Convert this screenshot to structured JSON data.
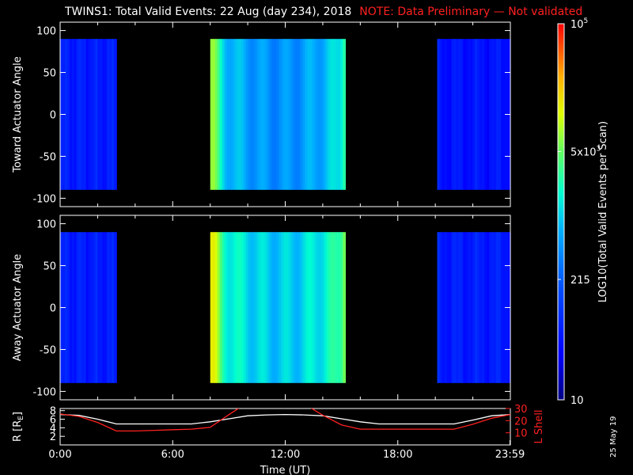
{
  "header": {
    "title": "TWINS1: Total Valid Events: 22 Aug (day 234), 2018",
    "note": "NOTE: Data Preliminary — Not validated"
  },
  "stamp": "25 May 19",
  "colors": {
    "background": "#000000",
    "note": "#ff2020",
    "r_line": "#ffffff",
    "lshell_line": "#ff2020"
  },
  "chart_data": [
    {
      "type": "heatmap",
      "ylabel": "Toward Actuator Angle",
      "yticks": [
        100,
        50,
        0,
        -50,
        -100
      ],
      "ylim": [
        -110,
        110
      ],
      "xlim": [
        0,
        24
      ],
      "data_yrange": [
        -90,
        90
      ],
      "segments": [
        {
          "start": 0.0,
          "end": 3.0,
          "level": 0.18
        },
        {
          "start": 8.0,
          "end": 15.2,
          "level": 0.52
        },
        {
          "start": 20.1,
          "end": 24.0,
          "level": 0.16
        }
      ]
    },
    {
      "type": "heatmap",
      "ylabel": "Away Actuator Angle",
      "yticks": [
        100,
        50,
        0,
        -50,
        -100
      ],
      "ylim": [
        -110,
        110
      ],
      "xlim": [
        0,
        24
      ],
      "data_yrange": [
        -90,
        90
      ],
      "segments": [
        {
          "start": 0.0,
          "end": 3.0,
          "level": 0.18
        },
        {
          "start": 8.0,
          "end": 15.2,
          "level": 0.6
        },
        {
          "start": 20.1,
          "end": 24.0,
          "level": 0.18
        }
      ]
    },
    {
      "type": "line",
      "ylabel": "R [R",
      "ylabel_sub": "E",
      "ylabel_tail": "]",
      "y2label": "L Shell",
      "yticks": [
        2,
        4,
        6,
        8
      ],
      "y2ticks": [
        10,
        20,
        30
      ],
      "ylim": [
        0,
        8.5
      ],
      "y2lim": [
        0,
        30
      ],
      "xlabel": "Time (UT)",
      "xticks": [
        "0:00",
        "6:00",
        "12:00",
        "18:00",
        "23:59"
      ],
      "xtick_values": [
        0,
        6,
        12,
        18,
        23.98
      ],
      "series": [
        {
          "x": [
            0,
            1,
            2,
            3,
            4,
            5,
            6,
            7,
            8,
            9,
            10,
            11,
            12,
            13,
            14,
            15,
            16,
            17,
            18,
            19,
            20,
            21,
            22,
            23,
            24
          ],
          "values": [
            7.1,
            6.9,
            6.0,
            4.9,
            4.9,
            4.9,
            4.9,
            4.9,
            5.4,
            6.1,
            6.8,
            7.0,
            7.1,
            7.0,
            6.8,
            6.1,
            5.4,
            4.9,
            4.9,
            4.9,
            4.9,
            4.9,
            5.8,
            6.8,
            7.1
          ]
        },
        {
          "x": [
            0,
            1,
            2,
            3,
            4,
            5,
            6,
            7,
            8,
            9,
            9.7,
            13.2,
            14,
            15,
            16,
            17,
            18,
            19,
            20,
            21,
            22,
            23,
            24
          ],
          "values": [
            25.5,
            23.5,
            18.5,
            11.5,
            11.5,
            12.0,
            12.5,
            13.0,
            14.5,
            25.0,
            32,
            32,
            24.5,
            16.5,
            13.0,
            13.0,
            13.0,
            13.0,
            13.0,
            13.0,
            17.0,
            22.0,
            25.0
          ],
          "axis": "right"
        }
      ]
    }
  ],
  "colorbar": {
    "label": "LOG10(Total Valid Events per Scan)",
    "ticks": [
      {
        "label": "10",
        "level": 0.0
      },
      {
        "label": "215",
        "level": 0.32
      },
      {
        "label": "5x10",
        "sup": "3",
        "level": 0.66
      },
      {
        "label": "10",
        "sup": "5",
        "level": 1.0
      }
    ]
  }
}
